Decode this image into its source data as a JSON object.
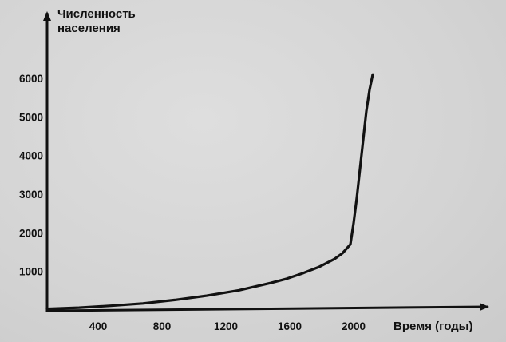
{
  "chart_data": {
    "type": "line",
    "title": "",
    "ylabel_lines": [
      "Численность",
      "населения"
    ],
    "xlabel": "Время (годы)",
    "x_ticks": [
      400,
      800,
      1200,
      1600,
      2000
    ],
    "y_ticks": [
      1000,
      2000,
      3000,
      4000,
      5000,
      6000
    ],
    "xlim": [
      0,
      2250
    ],
    "ylim": [
      0,
      6500
    ],
    "grid": false,
    "legend": "none",
    "line_color": "#111111",
    "series": [
      {
        "x": [
          0,
          200,
          400,
          600,
          800,
          1000,
          1200,
          1400,
          1500,
          1600,
          1700,
          1800,
          1850,
          1900,
          1920,
          1940,
          1960,
          1980,
          2000,
          2020,
          2040
        ],
        "y": [
          30,
          60,
          110,
          170,
          260,
          370,
          510,
          700,
          810,
          950,
          1110,
          1320,
          1470,
          1700,
          2250,
          2900,
          3650,
          4400,
          5150,
          5700,
          6100
        ]
      }
    ]
  }
}
